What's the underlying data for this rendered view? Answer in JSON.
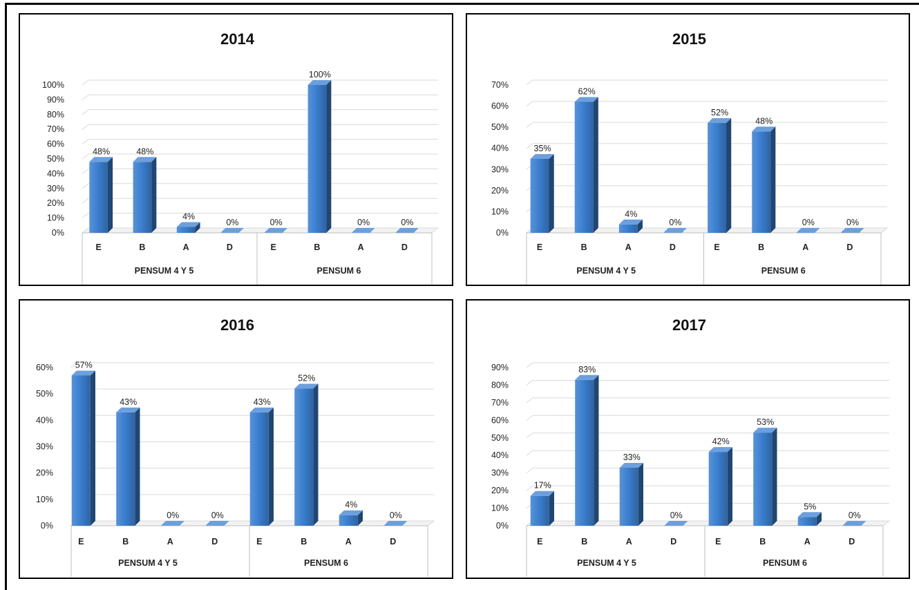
{
  "chart_data": [
    {
      "type": "bar",
      "title": "2014",
      "groups": [
        "PENSUM 4 Y 5",
        "PENSUM  6"
      ],
      "categories": [
        "E",
        "B",
        "A",
        "D",
        "E",
        "B",
        "A",
        "D"
      ],
      "values": [
        48,
        48,
        4,
        0,
        0,
        100,
        0,
        0
      ],
      "value_labels": [
        "48%",
        "48%",
        "4%",
        "0%",
        "0%",
        "100%",
        "0%",
        "0%"
      ],
      "yticks": [
        "0%",
        "10%",
        "20%",
        "30%",
        "40%",
        "50%",
        "60%",
        "70%",
        "80%",
        "90%",
        "100%"
      ],
      "ylim": [
        0,
        100
      ],
      "grid": true,
      "bar_color": "#3b7fd0"
    },
    {
      "type": "bar",
      "title": "2015",
      "groups": [
        "PENSUM 4 Y 5",
        "PENSUM  6"
      ],
      "categories": [
        "E",
        "B",
        "A",
        "D",
        "E",
        "B",
        "A",
        "D"
      ],
      "values": [
        35,
        62,
        4,
        0,
        52,
        48,
        0,
        0
      ],
      "value_labels": [
        "35%",
        "62%",
        "4%",
        "0%",
        "52%",
        "48%",
        "0%",
        "0%"
      ],
      "yticks": [
        "0%",
        "10%",
        "20%",
        "30%",
        "40%",
        "50%",
        "60%",
        "70%"
      ],
      "ylim": [
        0,
        70
      ],
      "grid": true,
      "bar_color": "#3b7fd0"
    },
    {
      "type": "bar",
      "title": "2016",
      "groups": [
        "PENSUM 4 Y 5",
        "PENSUM  6"
      ],
      "categories": [
        "E",
        "B",
        "A",
        "D",
        "E",
        "B",
        "A",
        "D"
      ],
      "values": [
        57,
        43,
        0,
        0,
        43,
        52,
        4,
        0
      ],
      "value_labels": [
        "57%",
        "43%",
        "0%",
        "0%",
        "43%",
        "52%",
        "4%",
        "0%"
      ],
      "yticks": [
        "0%",
        "10%",
        "20%",
        "30%",
        "40%",
        "50%",
        "60%"
      ],
      "ylim": [
        0,
        60
      ],
      "grid": true,
      "bar_color": "#3b7fd0"
    },
    {
      "type": "bar",
      "title": "2017",
      "groups": [
        "PENSUM 4 Y 5",
        "PENSUM  6"
      ],
      "categories": [
        "E",
        "B",
        "A",
        "D",
        "E",
        "B",
        "A",
        "D"
      ],
      "values": [
        17,
        83,
        33,
        0,
        42,
        53,
        5,
        0
      ],
      "value_labels": [
        "17%",
        "83%",
        "33%",
        "0%",
        "42%",
        "53%",
        "5%",
        "0%"
      ],
      "yticks": [
        "0%",
        "10%",
        "20%",
        "30%",
        "40%",
        "50%",
        "60%",
        "70%",
        "80%",
        "90%"
      ],
      "ylim": [
        0,
        90
      ],
      "grid": true,
      "bar_color": "#3b7fd0"
    }
  ]
}
